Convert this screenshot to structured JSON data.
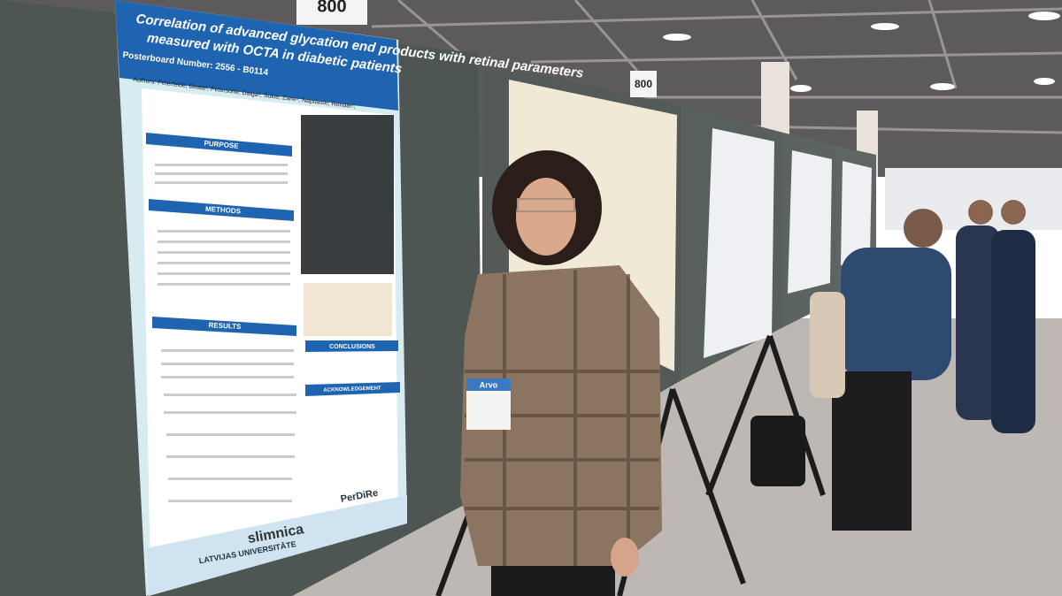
{
  "poster": {
    "title_line1": "Correlation of advanced glycation end products with retinal parameters",
    "title_line2": "measured with OCTA in diabetic patients",
    "posterboard": "Posterboard Number: 2556 - B0114",
    "authors": "Authors: Peterfelde, Beata¹; Petersone, Daiga¹; Sukle, Zane¹; Napdaste, Renate¹;",
    "sections": [
      "PURPOSE",
      "METHODS",
      "RESULTS",
      "CONCLUSIONS",
      "ACKNOWLEDGEMENT"
    ],
    "logos": [
      "LATVIJAS UNIVERSITĀTE",
      "slimnica",
      "PerDiRe"
    ]
  },
  "signs": [
    "800",
    "800"
  ],
  "badge": "Arvo"
}
